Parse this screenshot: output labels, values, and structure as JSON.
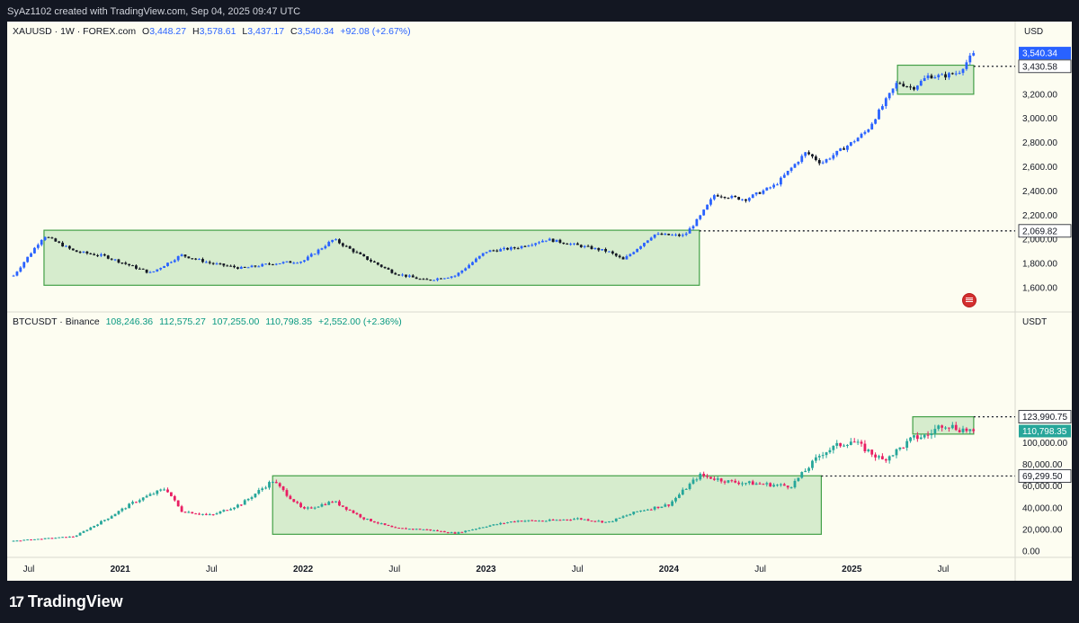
{
  "header": {
    "credit": "SyAz1102 created with TradingView.com, Sep 04, 2025 09:47 UTC"
  },
  "footer": {
    "logo_mark": "17",
    "brand": "TradingView"
  },
  "gold_legend": {
    "symbol": "XAUUSD · 1W · FOREX.com",
    "open_label": "O",
    "open": "3,448.27",
    "high_label": "H",
    "high": "3,578.61",
    "low_label": "L",
    "low": "3,437.17",
    "close_label": "C",
    "close": "3,540.34",
    "change": "+92.08 (+2.67%)"
  },
  "btc_legend": {
    "symbol": "BTCUSDT · Binance",
    "open": "108,246.36",
    "high": "112,575.27",
    "low": "107,255.00",
    "close": "110,798.35",
    "change": "+2,552.00 (+2.36%)"
  },
  "colors": {
    "gold_up": "#2962ff",
    "gold_down": "#131722",
    "btc_up": "#26a69a",
    "btc_down": "#e91e63",
    "box_fill": "#c8e6c0",
    "box_stroke": "#43a047",
    "chart_bg": "#fdfdf1"
  },
  "chart_data": [
    {
      "type": "candlestick",
      "symbol": "XAUUSD",
      "timeframe": "1W",
      "currency": "USD",
      "y_ticks": [
        1600,
        1800,
        2000,
        2200,
        2400,
        2600,
        2800,
        3000,
        3200
      ],
      "y_tick_labels": [
        "1,600.00",
        "1,800.00",
        "2,000.00",
        "2,200.00",
        "2,400.00",
        "2,600.00",
        "2,800.00",
        "3,000.00",
        "3,200.00"
      ],
      "last_price_label": "3,540.34",
      "level_labels": [
        "3,430.58",
        "2,069.82"
      ],
      "levels": [
        3430.58,
        2069.82
      ],
      "range_boxes": [
        {
          "from": "2020-08",
          "to": "2024-03",
          "low": 1620,
          "high": 2075
        },
        {
          "from": "2025-04",
          "to": "2025-09",
          "low": 3200,
          "high": 3440
        }
      ],
      "series": [
        {
          "date": "2020-06",
          "value": 1700
        },
        {
          "date": "2020-08",
          "value": 2030
        },
        {
          "date": "2020-10",
          "value": 1900
        },
        {
          "date": "2020-12",
          "value": 1860
        },
        {
          "date": "2021-03",
          "value": 1720
        },
        {
          "date": "2021-05",
          "value": 1870
        },
        {
          "date": "2021-07",
          "value": 1800
        },
        {
          "date": "2021-09",
          "value": 1760
        },
        {
          "date": "2021-11",
          "value": 1800
        },
        {
          "date": "2022-01",
          "value": 1820
        },
        {
          "date": "2022-03",
          "value": 2000
        },
        {
          "date": "2022-05",
          "value": 1850
        },
        {
          "date": "2022-07",
          "value": 1720
        },
        {
          "date": "2022-09",
          "value": 1660
        },
        {
          "date": "2022-11",
          "value": 1700
        },
        {
          "date": "2023-01",
          "value": 1900
        },
        {
          "date": "2023-03",
          "value": 1930
        },
        {
          "date": "2023-05",
          "value": 2000
        },
        {
          "date": "2023-07",
          "value": 1950
        },
        {
          "date": "2023-09",
          "value": 1900
        },
        {
          "date": "2023-10",
          "value": 1830
        },
        {
          "date": "2023-12",
          "value": 2040
        },
        {
          "date": "2024-02",
          "value": 2030
        },
        {
          "date": "2024-03",
          "value": 2180
        },
        {
          "date": "2024-04",
          "value": 2370
        },
        {
          "date": "2024-06",
          "value": 2330
        },
        {
          "date": "2024-08",
          "value": 2450
        },
        {
          "date": "2024-10",
          "value": 2720
        },
        {
          "date": "2024-11",
          "value": 2630
        },
        {
          "date": "2025-01",
          "value": 2800
        },
        {
          "date": "2025-02",
          "value": 2900
        },
        {
          "date": "2025-03",
          "value": 3100
        },
        {
          "date": "2025-04",
          "value": 3300
        },
        {
          "date": "2025-05",
          "value": 3250
        },
        {
          "date": "2025-06",
          "value": 3350
        },
        {
          "date": "2025-07",
          "value": 3350
        },
        {
          "date": "2025-08",
          "value": 3380
        },
        {
          "date": "2025-09",
          "value": 3540
        }
      ]
    },
    {
      "type": "candlestick",
      "symbol": "BTCUSDT",
      "timeframe": "1W",
      "currency": "USDT",
      "y_ticks": [
        0,
        20000,
        40000,
        60000,
        80000,
        100000
      ],
      "y_tick_labels": [
        "0.00",
        "20,000.00",
        "40,000.00",
        "60,000.00",
        "80,000.00",
        "100,000.00"
      ],
      "last_price_label": "110,798.35",
      "level_labels": [
        "123,990.75",
        "69,299.50"
      ],
      "levels": [
        123990.75,
        69299.5
      ],
      "range_boxes": [
        {
          "from": "2021-11",
          "to": "2024-11",
          "low": 15500,
          "high": 69500
        },
        {
          "from": "2025-05",
          "to": "2025-09",
          "low": 108000,
          "high": 124000
        }
      ],
      "series": [
        {
          "date": "2020-06",
          "value": 9500
        },
        {
          "date": "2020-08",
          "value": 11500
        },
        {
          "date": "2020-10",
          "value": 13500
        },
        {
          "date": "2020-12",
          "value": 29000
        },
        {
          "date": "2021-02",
          "value": 46000
        },
        {
          "date": "2021-04",
          "value": 58000
        },
        {
          "date": "2021-05",
          "value": 37000
        },
        {
          "date": "2021-07",
          "value": 33000
        },
        {
          "date": "2021-09",
          "value": 44000
        },
        {
          "date": "2021-11",
          "value": 65000
        },
        {
          "date": "2022-01",
          "value": 38000
        },
        {
          "date": "2022-03",
          "value": 46000
        },
        {
          "date": "2022-05",
          "value": 30000
        },
        {
          "date": "2022-07",
          "value": 21000
        },
        {
          "date": "2022-09",
          "value": 20000
        },
        {
          "date": "2022-11",
          "value": 16500
        },
        {
          "date": "2023-01",
          "value": 23000
        },
        {
          "date": "2023-03",
          "value": 28000
        },
        {
          "date": "2023-05",
          "value": 28000
        },
        {
          "date": "2023-07",
          "value": 30000
        },
        {
          "date": "2023-09",
          "value": 26500
        },
        {
          "date": "2023-11",
          "value": 37000
        },
        {
          "date": "2024-01",
          "value": 43000
        },
        {
          "date": "2024-03",
          "value": 70000
        },
        {
          "date": "2024-05",
          "value": 64000
        },
        {
          "date": "2024-07",
          "value": 62000
        },
        {
          "date": "2024-09",
          "value": 60000
        },
        {
          "date": "2024-11",
          "value": 90000
        },
        {
          "date": "2024-12",
          "value": 97000
        },
        {
          "date": "2025-01",
          "value": 102000
        },
        {
          "date": "2025-03",
          "value": 84000
        },
        {
          "date": "2025-04",
          "value": 93000
        },
        {
          "date": "2025-05",
          "value": 104000
        },
        {
          "date": "2025-06",
          "value": 107000
        },
        {
          "date": "2025-07",
          "value": 118000
        },
        {
          "date": "2025-08",
          "value": 113000
        },
        {
          "date": "2025-09",
          "value": 110798.35
        }
      ]
    }
  ],
  "x_axis": {
    "labels": [
      {
        "text": "Jul",
        "date": "2020-07"
      },
      {
        "text": "2021",
        "date": "2021-01"
      },
      {
        "text": "Jul",
        "date": "2021-07"
      },
      {
        "text": "2022",
        "date": "2022-01"
      },
      {
        "text": "Jul",
        "date": "2022-07"
      },
      {
        "text": "2023",
        "date": "2023-01"
      },
      {
        "text": "Jul",
        "date": "2023-07"
      },
      {
        "text": "2024",
        "date": "2024-01"
      },
      {
        "text": "Jul",
        "date": "2024-07"
      },
      {
        "text": "2025",
        "date": "2025-01"
      },
      {
        "text": "Jul",
        "date": "2025-07"
      }
    ]
  }
}
